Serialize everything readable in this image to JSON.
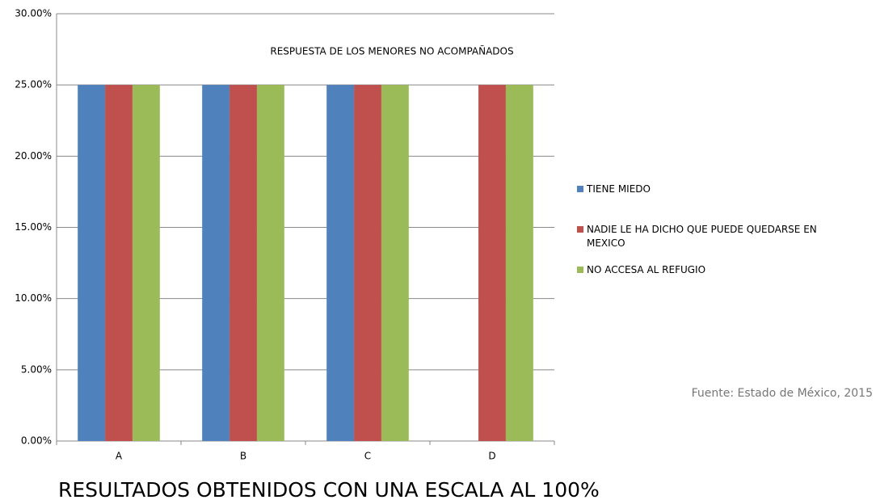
{
  "chart_data": {
    "type": "bar",
    "title": "RESPUESTA DE LOS MENORES NO ACOMPAÑADOS",
    "categories": [
      "A",
      "B",
      "C",
      "D"
    ],
    "series": [
      {
        "name": "TIENE MIEDO",
        "color": "#4f81bd",
        "values": [
          25,
          25,
          25,
          0
        ]
      },
      {
        "name": "NADIE LE HA DICHO QUE PUEDE QUEDARSE EN MEXICO",
        "color": "#c0504d",
        "values": [
          25,
          25,
          25,
          25
        ]
      },
      {
        "name": "NO ACCESA AL REFUGIO",
        "color": "#9bbb59",
        "values": [
          25,
          25,
          25,
          25
        ]
      }
    ],
    "ylim": [
      0,
      30
    ],
    "yticks": [
      {
        "value": 0,
        "label": "0.00%"
      },
      {
        "value": 5,
        "label": "5.00%"
      },
      {
        "value": 10,
        "label": "10.00%"
      },
      {
        "value": 15,
        "label": "15.00%"
      },
      {
        "value": 20,
        "label": "20.00%"
      },
      {
        "value": 25,
        "label": "25.00%"
      },
      {
        "value": 30,
        "label": "30.00%"
      }
    ],
    "grid": true,
    "legend": "right",
    "source": "Fuente: Estado de México, 2015",
    "caption": "RESULTADOS OBTENIDOS CON UNA  ESCALA AL 100%"
  }
}
